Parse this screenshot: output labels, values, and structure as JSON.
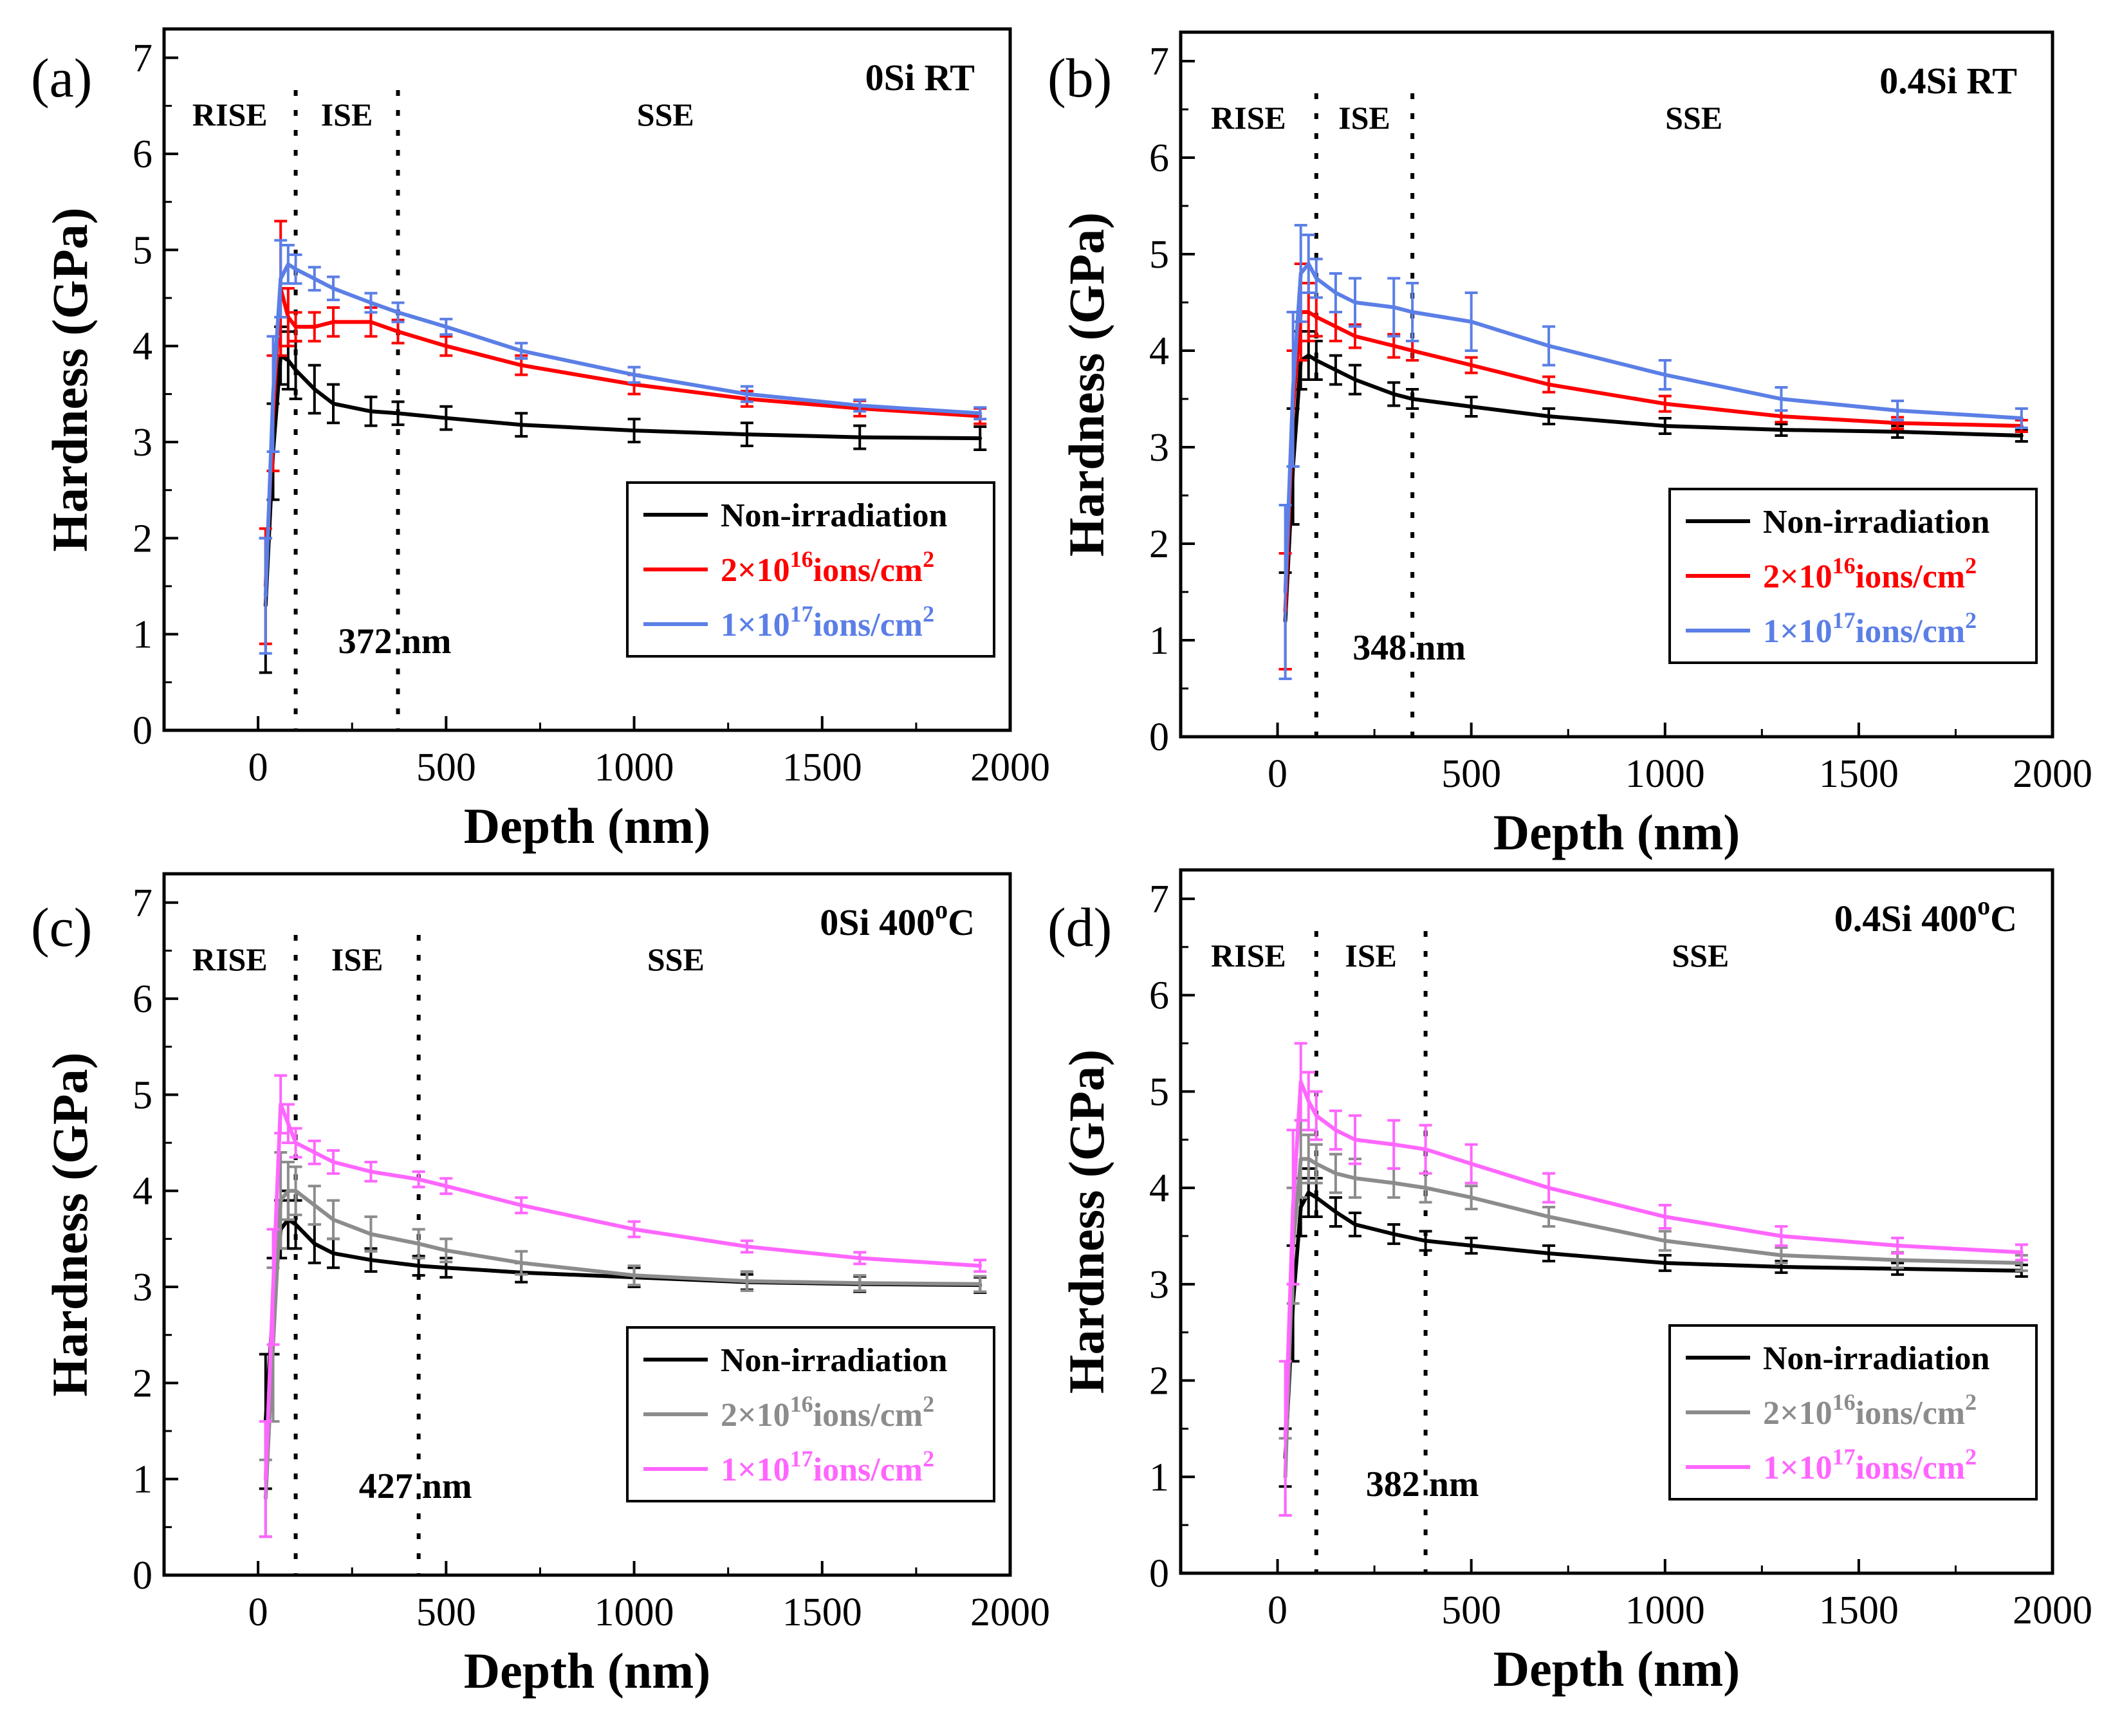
{
  "figure": {
    "description_free": true
  },
  "chart_data": [
    {
      "panel": "(a)",
      "type": "line",
      "title": "0Si  RT",
      "xlabel": "Depth (nm)",
      "ylabel": "Hardness (GPa)",
      "xlim": [
        -250,
        2000
      ],
      "ylim": [
        0,
        7.3
      ],
      "xticks": [
        0,
        500,
        1000,
        1500,
        2000
      ],
      "yticks": [
        0,
        1,
        2,
        3,
        4,
        5,
        6,
        7
      ],
      "regions": [
        "RISE",
        "ISE",
        "SSE"
      ],
      "boundaries": [
        100,
        372
      ],
      "annotation": "372 nm",
      "legend_position": "lower-right",
      "series": [
        {
          "name": "Non-irradiation",
          "color": "#000000",
          "x": [
            20,
            40,
            60,
            80,
            100,
            150,
            200,
            300,
            372,
            500,
            700,
            1000,
            1300,
            1600,
            1920
          ],
          "y": [
            1.3,
            2.9,
            3.9,
            3.85,
            3.75,
            3.55,
            3.4,
            3.32,
            3.3,
            3.25,
            3.18,
            3.12,
            3.08,
            3.05,
            3.04
          ],
          "err": [
            0.7,
            0.5,
            0.3,
            0.3,
            0.3,
            0.25,
            0.2,
            0.15,
            0.12,
            0.12,
            0.12,
            0.12,
            0.12,
            0.12,
            0.12
          ]
        },
        {
          "name": "2×10¹⁶ions/cm²",
          "label_main": "2×10",
          "label_exp": "16",
          "label_tail": "ions/cm",
          "label_exp2": "2",
          "color": "#ff0000",
          "x": [
            20,
            40,
            60,
            80,
            100,
            150,
            200,
            300,
            372,
            500,
            700,
            1000,
            1300,
            1600,
            1920
          ],
          "y": [
            1.5,
            3.3,
            4.6,
            4.3,
            4.2,
            4.2,
            4.25,
            4.25,
            4.15,
            4.0,
            3.8,
            3.6,
            3.45,
            3.35,
            3.27
          ],
          "err": [
            0.6,
            0.6,
            0.7,
            0.3,
            0.15,
            0.15,
            0.15,
            0.15,
            0.12,
            0.1,
            0.1,
            0.1,
            0.08,
            0.08,
            0.08
          ]
        },
        {
          "name": "1×10¹⁷ions/cm²",
          "label_main": "1×10",
          "label_exp": "17",
          "label_tail": "ions/cm",
          "label_exp2": "2",
          "color": "#5b7fe6",
          "x": [
            20,
            40,
            60,
            80,
            100,
            150,
            200,
            300,
            372,
            500,
            700,
            1000,
            1300,
            1600,
            1920
          ],
          "y": [
            1.4,
            3.5,
            4.7,
            4.85,
            4.8,
            4.7,
            4.6,
            4.45,
            4.35,
            4.2,
            3.95,
            3.7,
            3.5,
            3.38,
            3.3
          ],
          "err": [
            0.6,
            0.6,
            0.4,
            0.2,
            0.15,
            0.12,
            0.12,
            0.1,
            0.1,
            0.08,
            0.08,
            0.08,
            0.08,
            0.06,
            0.06
          ]
        }
      ]
    },
    {
      "panel": "(b)",
      "type": "line",
      "title": "0.4Si  RT",
      "xlabel": "Depth (nm)",
      "ylabel": "Hardness (GPa)",
      "xlim": [
        -250,
        2000
      ],
      "ylim": [
        0,
        7.3
      ],
      "xticks": [
        0,
        500,
        1000,
        1500,
        2000
      ],
      "yticks": [
        0,
        1,
        2,
        3,
        4,
        5,
        6,
        7
      ],
      "regions": [
        "RISE",
        "ISE",
        "SSE"
      ],
      "boundaries": [
        100,
        348
      ],
      "annotation": "348 nm",
      "legend_position": "lower-right",
      "series": [
        {
          "name": "Non-irradiation",
          "color": "#000000",
          "x": [
            20,
            40,
            60,
            80,
            100,
            150,
            200,
            300,
            348,
            500,
            700,
            1000,
            1300,
            1600,
            1920
          ],
          "y": [
            1.2,
            2.8,
            3.9,
            3.95,
            3.9,
            3.8,
            3.7,
            3.55,
            3.5,
            3.42,
            3.32,
            3.22,
            3.18,
            3.16,
            3.12
          ],
          "err": [
            0.5,
            0.6,
            0.3,
            0.25,
            0.2,
            0.15,
            0.15,
            0.12,
            0.1,
            0.1,
            0.08,
            0.08,
            0.06,
            0.06,
            0.06
          ]
        },
        {
          "name": "2×10¹⁶ions/cm²",
          "label_main": "2×10",
          "label_exp": "16",
          "label_tail": "ions/cm",
          "label_exp2": "2",
          "color": "#ff0000",
          "x": [
            20,
            40,
            60,
            80,
            100,
            150,
            200,
            300,
            348,
            500,
            700,
            1000,
            1300,
            1600,
            1920
          ],
          "y": [
            1.3,
            3.4,
            4.4,
            4.4,
            4.35,
            4.25,
            4.15,
            4.05,
            4.0,
            3.85,
            3.65,
            3.45,
            3.32,
            3.25,
            3.22
          ],
          "err": [
            0.6,
            0.6,
            0.5,
            0.3,
            0.2,
            0.15,
            0.12,
            0.12,
            0.1,
            0.08,
            0.08,
            0.08,
            0.06,
            0.06,
            0.06
          ]
        },
        {
          "name": "1×10¹⁷ions/cm²",
          "label_main": "1×10",
          "label_exp": "17",
          "label_tail": "ions/cm",
          "label_exp2": "2",
          "color": "#5b7fe6",
          "x": [
            20,
            40,
            60,
            80,
            100,
            150,
            200,
            300,
            348,
            500,
            700,
            1000,
            1300,
            1600,
            1920
          ],
          "y": [
            1.5,
            3.6,
            4.8,
            4.9,
            4.75,
            4.6,
            4.5,
            4.45,
            4.4,
            4.3,
            4.05,
            3.75,
            3.5,
            3.38,
            3.3
          ],
          "err": [
            0.9,
            0.8,
            0.5,
            0.3,
            0.2,
            0.2,
            0.25,
            0.3,
            0.3,
            0.3,
            0.2,
            0.15,
            0.12,
            0.1,
            0.1
          ]
        }
      ]
    },
    {
      "panel": "(c)",
      "type": "line",
      "title_main": "0Si  400",
      "title_sup": "o",
      "title_tail": "C",
      "xlabel": "Depth (nm)",
      "ylabel": "Hardness (GPa)",
      "xlim": [
        -250,
        2000
      ],
      "ylim": [
        0,
        7.3
      ],
      "xticks": [
        0,
        500,
        1000,
        1500,
        2000
      ],
      "yticks": [
        0,
        1,
        2,
        3,
        4,
        5,
        6,
        7
      ],
      "regions": [
        "RISE",
        "ISE",
        "SSE"
      ],
      "boundaries": [
        100,
        427
      ],
      "annotation": "427 nm",
      "legend_position": "lower-right",
      "series": [
        {
          "name": "Non-irradiation",
          "color": "#000000",
          "x": [
            20,
            40,
            60,
            80,
            100,
            150,
            200,
            300,
            427,
            500,
            700,
            1000,
            1300,
            1600,
            1920
          ],
          "y": [
            1.6,
            2.8,
            3.6,
            3.7,
            3.65,
            3.45,
            3.35,
            3.28,
            3.22,
            3.2,
            3.15,
            3.1,
            3.05,
            3.03,
            3.02
          ],
          "err": [
            0.7,
            0.5,
            0.3,
            0.3,
            0.25,
            0.2,
            0.15,
            0.12,
            0.1,
            0.1,
            0.1,
            0.1,
            0.08,
            0.08,
            0.08
          ]
        },
        {
          "name": "2×10¹⁶ions/cm²",
          "label_main": "2×10",
          "label_exp": "16",
          "label_tail": "ions/cm",
          "label_exp2": "2",
          "color": "#8c8c8c",
          "x": [
            20,
            40,
            60,
            80,
            100,
            150,
            200,
            300,
            427,
            500,
            700,
            1000,
            1300,
            1600,
            1920
          ],
          "y": [
            0.8,
            2.4,
            3.9,
            4.0,
            4.0,
            3.85,
            3.7,
            3.55,
            3.45,
            3.38,
            3.25,
            3.12,
            3.06,
            3.04,
            3.03
          ],
          "err": [
            0.4,
            0.8,
            0.5,
            0.3,
            0.25,
            0.2,
            0.2,
            0.18,
            0.15,
            0.12,
            0.12,
            0.1,
            0.1,
            0.08,
            0.08
          ]
        },
        {
          "name": "1×10¹⁷ions/cm²",
          "label_main": "1×10",
          "label_exp": "17",
          "label_tail": "ions/cm",
          "label_exp2": "2",
          "color": "#ff66ff",
          "x": [
            20,
            40,
            60,
            80,
            100,
            150,
            200,
            300,
            427,
            500,
            700,
            1000,
            1300,
            1600,
            1920
          ],
          "y": [
            1.0,
            3.0,
            4.9,
            4.7,
            4.5,
            4.4,
            4.3,
            4.2,
            4.12,
            4.05,
            3.85,
            3.6,
            3.42,
            3.3,
            3.22
          ],
          "err": [
            0.6,
            0.6,
            0.3,
            0.2,
            0.15,
            0.12,
            0.12,
            0.1,
            0.08,
            0.08,
            0.08,
            0.08,
            0.06,
            0.06,
            0.06
          ]
        }
      ]
    },
    {
      "panel": "(d)",
      "type": "line",
      "title_main": "0.4Si  400",
      "title_sup": "o",
      "title_tail": "C",
      "xlabel": "Depth (nm)",
      "ylabel": "Hardness (GPa)",
      "xlim": [
        -250,
        2000
      ],
      "ylim": [
        0,
        7.3
      ],
      "xticks": [
        0,
        500,
        1000,
        1500,
        2000
      ],
      "yticks": [
        0,
        1,
        2,
        3,
        4,
        5,
        6,
        7
      ],
      "regions": [
        "RISE",
        "ISE",
        "SSE"
      ],
      "boundaries": [
        100,
        382
      ],
      "annotation": "382 nm",
      "legend_position": "lower-right",
      "series": [
        {
          "name": "Non-irradiation",
          "color": "#000000",
          "x": [
            20,
            40,
            60,
            80,
            100,
            150,
            200,
            300,
            382,
            500,
            700,
            1000,
            1300,
            1600,
            1920
          ],
          "y": [
            1.2,
            2.8,
            3.8,
            3.95,
            3.9,
            3.75,
            3.62,
            3.52,
            3.45,
            3.4,
            3.32,
            3.22,
            3.18,
            3.16,
            3.14
          ],
          "err": [
            0.3,
            0.6,
            0.3,
            0.25,
            0.2,
            0.15,
            0.12,
            0.1,
            0.1,
            0.08,
            0.08,
            0.08,
            0.06,
            0.06,
            0.06
          ]
        },
        {
          "name": "2×10¹⁶ions/cm²",
          "label_main": "2×10",
          "label_exp": "16",
          "label_tail": "ions/cm",
          "label_exp2": "2",
          "color": "#8c8c8c",
          "x": [
            20,
            40,
            60,
            80,
            100,
            150,
            200,
            300,
            382,
            500,
            700,
            1000,
            1300,
            1600,
            1920
          ],
          "y": [
            1.0,
            3.4,
            4.3,
            4.3,
            4.25,
            4.15,
            4.1,
            4.05,
            4.0,
            3.9,
            3.7,
            3.45,
            3.3,
            3.25,
            3.22
          ],
          "err": [
            0.4,
            0.6,
            0.4,
            0.25,
            0.2,
            0.2,
            0.2,
            0.15,
            0.15,
            0.12,
            0.1,
            0.1,
            0.08,
            0.08,
            0.08
          ]
        },
        {
          "name": "1×10¹⁷ions/cm²",
          "label_main": "1×10",
          "label_exp": "17",
          "label_tail": "ions/cm",
          "label_exp2": "2",
          "color": "#ff66ff",
          "x": [
            20,
            40,
            60,
            80,
            100,
            150,
            200,
            300,
            382,
            500,
            700,
            1000,
            1300,
            1600,
            1920
          ],
          "y": [
            1.4,
            3.8,
            5.1,
            4.9,
            4.75,
            4.6,
            4.5,
            4.45,
            4.4,
            4.25,
            4.0,
            3.7,
            3.5,
            3.4,
            3.33
          ],
          "err": [
            0.8,
            0.8,
            0.4,
            0.3,
            0.25,
            0.2,
            0.25,
            0.25,
            0.25,
            0.2,
            0.15,
            0.12,
            0.1,
            0.08,
            0.08
          ]
        }
      ]
    }
  ]
}
